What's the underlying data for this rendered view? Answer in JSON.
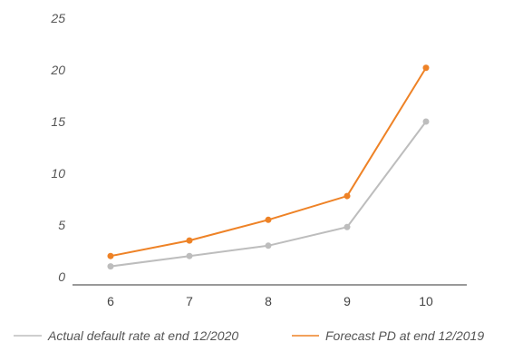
{
  "chart_data": {
    "type": "line",
    "categories": [
      "6",
      "7",
      "8",
      "9",
      "10"
    ],
    "series": [
      {
        "name": "Actual default rate at end 12/2020",
        "values": [
          1.0,
          2.0,
          3.0,
          4.8,
          15.0
        ],
        "color": "#bdbdbd"
      },
      {
        "name": "Forecast PD at end 12/2019",
        "values": [
          2.0,
          3.5,
          5.5,
          7.8,
          20.2
        ],
        "color": "#ee8226"
      }
    ],
    "yticks": [
      "0",
      "5",
      "10",
      "15",
      "20",
      "25"
    ],
    "ylim": [
      0,
      25
    ],
    "grid": false,
    "legend_position": "bottom"
  }
}
